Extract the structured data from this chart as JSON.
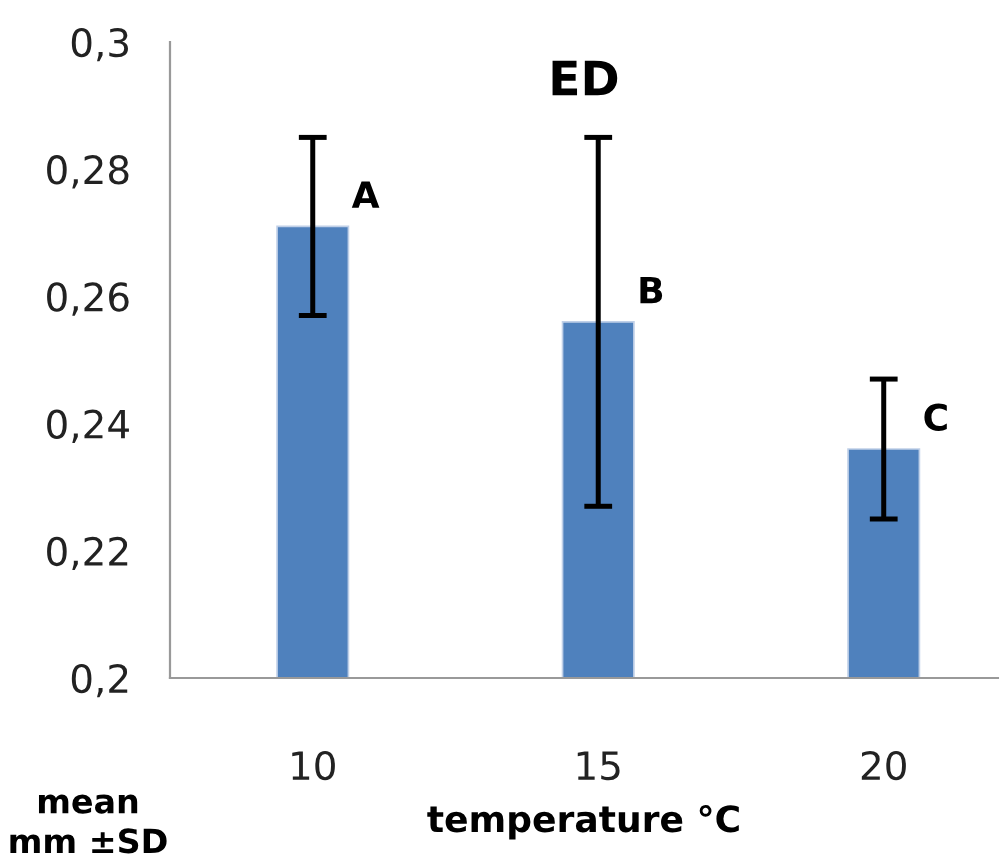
{
  "chart_data": {
    "type": "bar",
    "title": "ED",
    "xlabel": "temperature °C",
    "ylabel": "mean\nmm ±SD",
    "categories": [
      "10",
      "15",
      "20"
    ],
    "values": [
      0.271,
      0.256,
      0.236
    ],
    "errors": [
      0.014,
      0.029,
      0.011
    ],
    "color": "#4f81bd",
    "ylim": [
      0.2,
      0.3
    ],
    "yticks": [
      {
        "value": 0.2,
        "label": "0,2"
      },
      {
        "value": 0.22,
        "label": "0,22"
      },
      {
        "value": 0.24,
        "label": "0,24"
      },
      {
        "value": 0.26,
        "label": "0,26"
      },
      {
        "value": 0.28,
        "label": "0,28"
      },
      {
        "value": 0.3,
        "label": "0,3"
      }
    ],
    "annotations": [
      {
        "text": "A",
        "x": "10",
        "y": 0.271
      },
      {
        "text": "B",
        "x": "15",
        "y": 0.256
      },
      {
        "text": "C",
        "x": "20",
        "y": 0.236
      }
    ],
    "grid": false,
    "legend": false
  }
}
